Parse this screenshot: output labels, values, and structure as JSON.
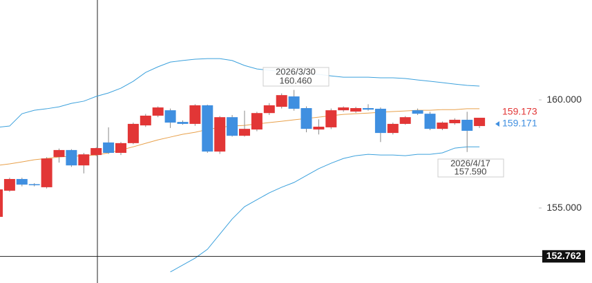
{
  "chart_data": {
    "type": "candlestick",
    "up_color": "#e23636",
    "down_color": "#3f8fe0",
    "ylim": [
      151.53,
      164.62
    ],
    "yticks": [
      {
        "value": 160,
        "label": "160.000"
      },
      {
        "value": 155,
        "label": "155.000"
      }
    ],
    "candles": [
      {
        "open": 154.59,
        "high": 155.95,
        "low": 154.5,
        "close": 155.86
      },
      {
        "open": 155.8,
        "high": 156.4,
        "low": 155.75,
        "close": 156.34
      },
      {
        "open": 156.34,
        "high": 156.4,
        "low": 156.0,
        "close": 156.08
      },
      {
        "open": 156.1,
        "high": 156.15,
        "low": 156.0,
        "close": 156.08
      },
      {
        "open": 155.96,
        "high": 157.35,
        "low": 155.9,
        "close": 157.29
      },
      {
        "open": 157.36,
        "high": 157.75,
        "low": 157.1,
        "close": 157.68
      },
      {
        "open": 157.68,
        "high": 157.72,
        "low": 156.9,
        "close": 156.97
      },
      {
        "open": 156.97,
        "high": 157.55,
        "low": 156.6,
        "close": 157.48
      },
      {
        "open": 157.45,
        "high": 157.8,
        "low": 157.4,
        "close": 157.77
      },
      {
        "open": 158.03,
        "high": 158.73,
        "low": 157.5,
        "close": 157.55
      },
      {
        "open": 157.55,
        "high": 158.05,
        "low": 157.45,
        "close": 158.0
      },
      {
        "open": 158.0,
        "high": 158.95,
        "low": 157.95,
        "close": 158.89
      },
      {
        "open": 158.82,
        "high": 159.35,
        "low": 158.75,
        "close": 159.27
      },
      {
        "open": 159.27,
        "high": 159.7,
        "low": 159.2,
        "close": 159.65
      },
      {
        "open": 159.52,
        "high": 159.6,
        "low": 158.7,
        "close": 158.95
      },
      {
        "open": 158.98,
        "high": 159.05,
        "low": 158.85,
        "close": 158.89
      },
      {
        "open": 158.89,
        "high": 159.8,
        "low": 158.8,
        "close": 159.75
      },
      {
        "open": 159.75,
        "high": 159.78,
        "low": 157.55,
        "close": 157.61
      },
      {
        "open": 157.61,
        "high": 159.25,
        "low": 157.5,
        "close": 159.2
      },
      {
        "open": 159.2,
        "high": 159.3,
        "low": 158.3,
        "close": 158.34
      },
      {
        "open": 158.34,
        "high": 159.5,
        "low": 158.3,
        "close": 158.66
      },
      {
        "open": 158.63,
        "high": 159.45,
        "low": 158.55,
        "close": 159.39
      },
      {
        "open": 159.39,
        "high": 159.85,
        "low": 159.3,
        "close": 159.75
      },
      {
        "open": 159.68,
        "high": 160.3,
        "low": 159.6,
        "close": 160.22
      },
      {
        "open": 160.16,
        "high": 160.46,
        "low": 159.5,
        "close": 159.59
      },
      {
        "open": 159.62,
        "high": 159.7,
        "low": 158.5,
        "close": 158.66
      },
      {
        "open": 158.63,
        "high": 159.1,
        "low": 158.4,
        "close": 158.76
      },
      {
        "open": 158.73,
        "high": 159.6,
        "low": 158.65,
        "close": 159.52
      },
      {
        "open": 159.52,
        "high": 159.7,
        "low": 159.45,
        "close": 159.65
      },
      {
        "open": 159.46,
        "high": 159.68,
        "low": 159.4,
        "close": 159.62
      },
      {
        "open": 159.62,
        "high": 159.8,
        "low": 159.5,
        "close": 159.55
      },
      {
        "open": 159.59,
        "high": 159.65,
        "low": 158.05,
        "close": 158.47
      },
      {
        "open": 158.47,
        "high": 158.95,
        "low": 158.4,
        "close": 158.89
      },
      {
        "open": 158.89,
        "high": 159.25,
        "low": 158.85,
        "close": 159.2
      },
      {
        "open": 159.52,
        "high": 159.6,
        "low": 159.3,
        "close": 159.36
      },
      {
        "open": 159.36,
        "high": 159.45,
        "low": 158.6,
        "close": 158.66
      },
      {
        "open": 158.66,
        "high": 159.0,
        "low": 158.6,
        "close": 158.95
      },
      {
        "open": 158.92,
        "high": 159.15,
        "low": 158.85,
        "close": 159.08
      },
      {
        "open": 159.08,
        "high": 159.45,
        "low": 157.59,
        "close": 158.57
      },
      {
        "open": 158.79,
        "high": 159.17,
        "low": 158.7,
        "close": 159.173
      }
    ],
    "lines": [
      {
        "color": "#3aa0dc",
        "values": [
          158.73,
          158.79,
          159.36,
          159.52,
          159.59,
          159.68,
          159.84,
          159.94,
          160.16,
          160.32,
          160.54,
          160.86,
          161.27,
          161.53,
          161.75,
          161.82,
          161.88,
          161.91,
          161.91,
          161.82,
          161.59,
          161.43,
          161.37,
          161.31,
          161.27,
          161.21,
          161.18,
          161.11,
          161.05,
          161.05,
          161.05,
          161.02,
          161.02,
          160.99,
          160.92,
          160.86,
          160.8,
          160.73,
          160.67,
          160.64
        ]
      },
      {
        "color": "#e8a04a",
        "values": [
          156.97,
          157.04,
          157.13,
          157.23,
          157.29,
          157.36,
          157.39,
          157.42,
          157.45,
          157.55,
          157.68,
          157.83,
          157.99,
          158.15,
          158.28,
          158.41,
          158.5,
          158.63,
          158.73,
          158.79,
          158.82,
          158.89,
          158.95,
          159.01,
          159.08,
          159.14,
          159.2,
          159.27,
          159.33,
          159.36,
          159.39,
          159.43,
          159.46,
          159.49,
          159.52,
          159.52,
          159.55,
          159.55,
          159.59,
          159.59
        ]
      },
      {
        "color": "#3aa0dc",
        "values": [
          null,
          null,
          null,
          null,
          null,
          null,
          null,
          null,
          null,
          null,
          null,
          null,
          null,
          null,
          152.04,
          152.36,
          152.68,
          153.09,
          153.79,
          154.49,
          155.06,
          155.38,
          155.7,
          155.96,
          156.18,
          156.5,
          156.82,
          157.07,
          157.29,
          157.42,
          157.48,
          157.45,
          157.45,
          157.42,
          157.48,
          157.48,
          157.55,
          157.77,
          157.83,
          157.83
        ]
      }
    ],
    "high_marker": {
      "date": "2026/3/30",
      "price": 160.46,
      "price_label": "160.460"
    },
    "low_marker": {
      "date": "2026/4/17",
      "price": 157.59,
      "price_label": "157.590"
    },
    "last_ask": 159.173,
    "last_bid": 159.171,
    "crosshair_price": 152.762
  }
}
